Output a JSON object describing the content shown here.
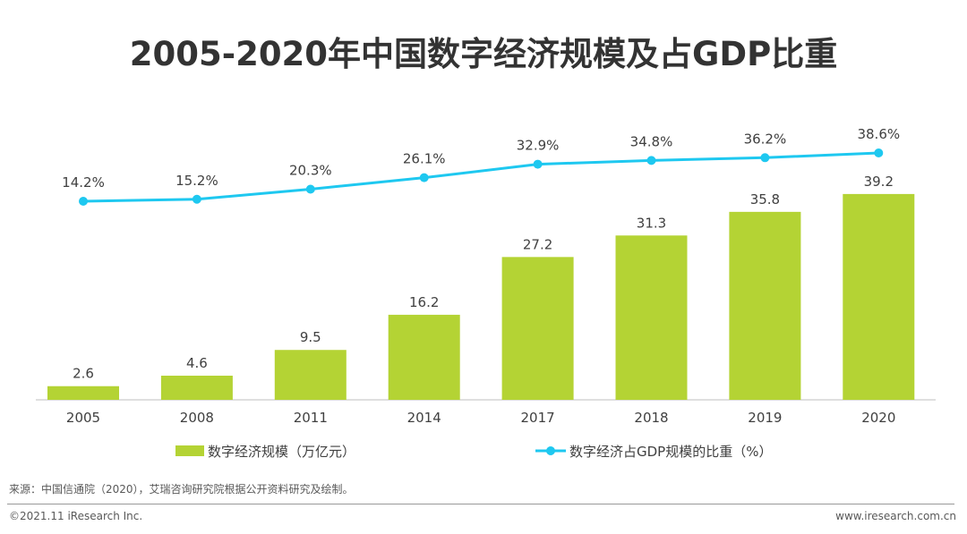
{
  "title": "2005-2020年中国数字经济规模及占GDP比重",
  "chart_data": {
    "type": "bar+line",
    "title": "2005-2020年中国数字经济规模及占GDP比重",
    "categories": [
      "2005",
      "2008",
      "2011",
      "2014",
      "2017",
      "2018",
      "2019",
      "2020"
    ],
    "series": [
      {
        "name": "数字经济规模（万亿元）",
        "type": "bar",
        "color": "#b4d334",
        "values": [
          2.6,
          4.6,
          9.5,
          16.2,
          27.2,
          31.3,
          35.8,
          39.2
        ],
        "labels": [
          "2.6",
          "4.6",
          "9.5",
          "16.2",
          "27.2",
          "31.3",
          "35.8",
          "39.2"
        ]
      },
      {
        "name": "数字经济占GDP规模的比重（%）",
        "type": "line",
        "color": "#1ec8f0",
        "values": [
          14.2,
          15.2,
          20.3,
          26.1,
          32.9,
          34.8,
          36.2,
          38.6
        ],
        "labels": [
          "14.2%",
          "15.2%",
          "20.3%",
          "26.1%",
          "32.9%",
          "34.8%",
          "36.2%",
          "38.6%"
        ]
      }
    ],
    "legend": "bottom",
    "grid": false
  },
  "footer": {
    "source": "来源：中国信通院（2020），艾瑞咨询研究院根据公开资料研究及绘制。",
    "copyright": "©2021.11 iResearch Inc.",
    "site": "www.iresearch.com.cn"
  }
}
